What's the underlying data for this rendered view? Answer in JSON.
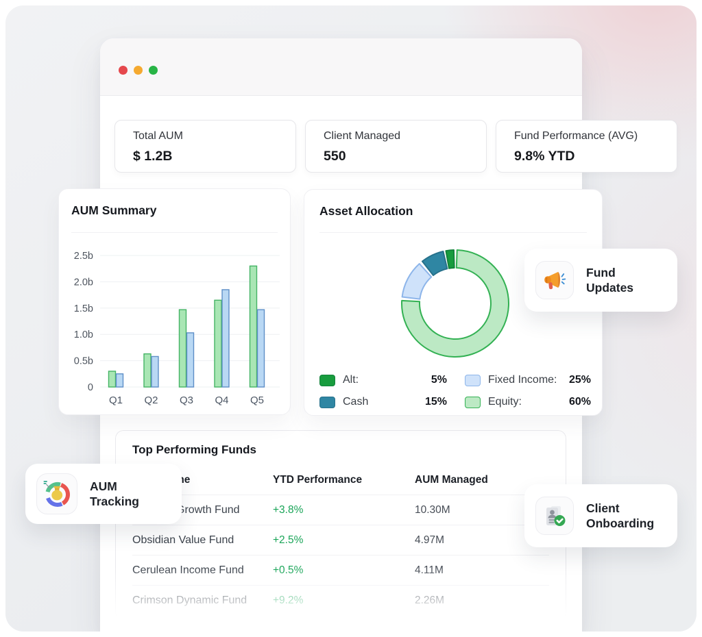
{
  "window": {
    "dots": [
      "#e5484d",
      "#f5a930",
      "#28b446"
    ]
  },
  "stats": [
    {
      "label": "Total AUM",
      "value": "$ 1.2B"
    },
    {
      "label": "Client Managed",
      "value": "550"
    },
    {
      "label": "Fund Performance (AVG)",
      "value": "9.8% YTD"
    }
  ],
  "aum_summary": {
    "title": "AUM Summary"
  },
  "asset_allocation": {
    "title": "Asset Allocation"
  },
  "top_funds": {
    "title": "Top Performing Funds",
    "columns": [
      "Fund Name",
      "YTD Performance",
      "AUM Managed"
    ],
    "rows": [
      {
        "name": "Emerald Growth Fund",
        "ytd": "+3.8%",
        "aum": "10.30M"
      },
      {
        "name": "Obsidian Value Fund",
        "ytd": "+2.5%",
        "aum": "4.97M"
      },
      {
        "name": "Cerulean Income Fund",
        "ytd": "+0.5%",
        "aum": "4.11M"
      },
      {
        "name": "Crimson Dynamic Fund",
        "ytd": "+9.2%",
        "aum": "2.26M"
      }
    ]
  },
  "badges": {
    "fund_updates": {
      "label": "Fund Updates",
      "icon": "megaphone-icon"
    },
    "aum_tracking": {
      "label": "AUM Tracking",
      "icon": "donut-moneybag-icon"
    },
    "client_onboarding": {
      "label": "Client Onboarding",
      "icon": "id-card-check-icon"
    }
  },
  "chart_data": [
    {
      "type": "bar",
      "title": "AUM Summary",
      "categories": [
        "Q1",
        "Q2",
        "Q3",
        "Q4",
        "Q5"
      ],
      "series": [
        {
          "name": "green",
          "fill": "#a9e6b4",
          "stroke": "#44b364",
          "values": [
            0.3,
            0.63,
            1.47,
            1.65,
            2.3
          ]
        },
        {
          "name": "blue",
          "fill": "#b9d8f4",
          "stroke": "#5e8fc7",
          "values": [
            0.25,
            0.58,
            1.03,
            1.85,
            1.47
          ]
        }
      ],
      "yticks": [
        "0",
        "0.5b",
        "1.0b",
        "1.5b",
        "2.0b",
        "2.5b"
      ],
      "ylim": [
        0,
        2.5
      ],
      "grid": true,
      "xlabel": "",
      "ylabel": ""
    },
    {
      "type": "pie",
      "style": "donut",
      "title": "Asset Allocation",
      "slices": [
        {
          "label": "Equity",
          "percent": 60,
          "fill": "#bce9c4",
          "stroke": "#33b153",
          "start_deg": 2,
          "end_deg": 273
        },
        {
          "label": "Fixed Income",
          "percent": 25,
          "fill": "#cfe2fa",
          "stroke": "#8db5ea",
          "start_deg": 277,
          "end_deg": 318
        },
        {
          "label": "Cash",
          "percent": 15,
          "fill": "#2f86a3",
          "stroke": "#27718b",
          "start_deg": 322,
          "end_deg": 347
        },
        {
          "label": "Alt",
          "percent": 5,
          "fill": "#189c3e",
          "stroke": "#12823a",
          "start_deg": 350,
          "end_deg": 358.5
        }
      ],
      "legend": [
        {
          "label": "Alt:",
          "value": "5%",
          "fill": "#189c3e",
          "stroke": "#12823a"
        },
        {
          "label": "Cash",
          "value": "15%",
          "fill": "#2f86a3",
          "stroke": "#27718b"
        },
        {
          "label": "Fixed Income:",
          "value": "25%",
          "fill": "#cfe2fa",
          "stroke": "#8db5ea"
        },
        {
          "label": "Equity:",
          "value": "60%",
          "fill": "#bce9c4",
          "stroke": "#33b153"
        }
      ],
      "legend_position": "bottom"
    }
  ]
}
